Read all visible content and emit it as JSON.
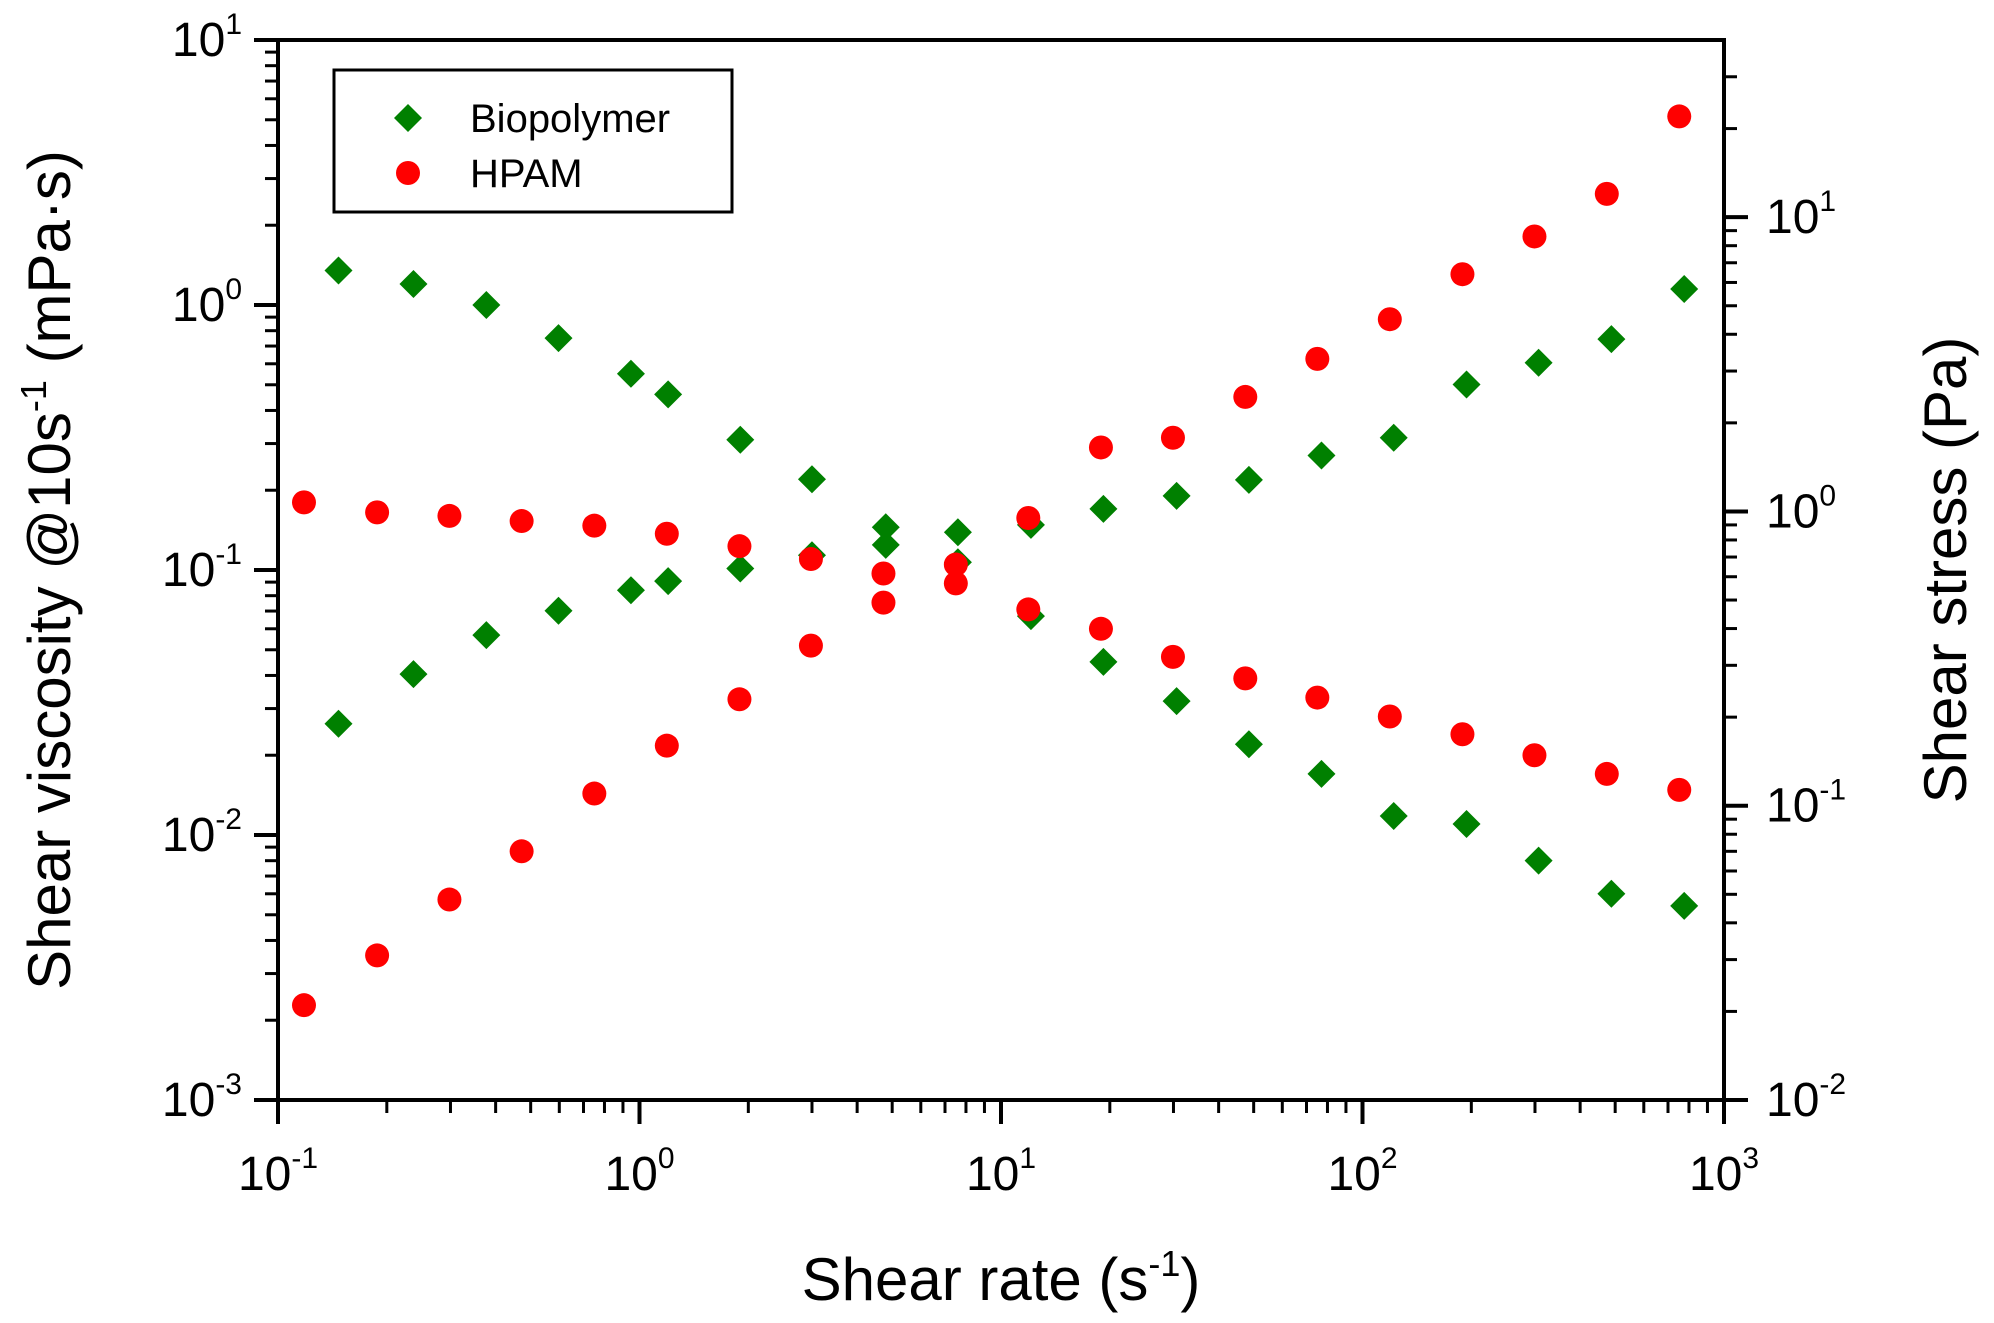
{
  "chart_data": {
    "type": "scatter",
    "x_axis": {
      "label_main": "Shear rate (s",
      "label_sup": "-1",
      "label_end": ")",
      "scale": "log",
      "range": [
        0.1,
        1000
      ],
      "ticks": [
        {
          "base": "10",
          "exp": "-1",
          "value": 0.1
        },
        {
          "base": "10",
          "exp": "0",
          "value": 1
        },
        {
          "base": "10",
          "exp": "1",
          "value": 10
        },
        {
          "base": "10",
          "exp": "2",
          "value": 100
        },
        {
          "base": "10",
          "exp": "3",
          "value": 1000
        }
      ]
    },
    "y_left_axis": {
      "label_main": "Shear viscosity @10s",
      "label_sup": "-1",
      "label_end": " (mPa·s)",
      "scale": "log",
      "range": [
        0.001,
        10
      ],
      "ticks": [
        {
          "base": "10",
          "exp": "-3",
          "value": 0.001
        },
        {
          "base": "10",
          "exp": "-2",
          "value": 0.01
        },
        {
          "base": "10",
          "exp": "-1",
          "value": 0.1
        },
        {
          "base": "10",
          "exp": "0",
          "value": 1
        },
        {
          "base": "10",
          "exp": "1",
          "value": 10
        }
      ]
    },
    "y_right_axis": {
      "label": "Shear stress (Pa)",
      "scale": "log",
      "range": [
        0.01,
        40
      ],
      "ticks": [
        {
          "base": "10",
          "exp": "-2",
          "value": 0.01
        },
        {
          "base": "10",
          "exp": "-1",
          "value": 0.1
        },
        {
          "base": "10",
          "exp": "0",
          "value": 1
        },
        {
          "base": "10",
          "exp": "1",
          "value": 10
        }
      ]
    },
    "legend": {
      "position": "top-left",
      "entries": [
        {
          "name": "Biopolymer",
          "marker": "diamond",
          "color": "#008000"
        },
        {
          "name": "HPAM",
          "marker": "circle",
          "color": "#ff0000"
        }
      ]
    },
    "grid": false,
    "series": [
      {
        "name": "Biopolymer",
        "quantity": "viscosity",
        "axis": "left",
        "marker": "diamond",
        "color": "#008000",
        "x": [
          0.147,
          0.237,
          0.377,
          0.597,
          0.947,
          1.2,
          1.9,
          3.0,
          4.8,
          7.6,
          12.1,
          19.2,
          30.6,
          48.5,
          77,
          122,
          194,
          307,
          488,
          776
        ],
        "y": [
          1.35,
          1.2,
          1.0,
          0.75,
          0.55,
          0.46,
          0.31,
          0.22,
          0.145,
          0.107,
          0.067,
          0.045,
          0.032,
          0.022,
          0.017,
          0.0118,
          0.011,
          0.008,
          0.006,
          0.0054
        ]
      },
      {
        "name": "Biopolymer",
        "quantity": "stress",
        "axis": "right",
        "marker": "diamond",
        "color": "#008000",
        "x": [
          0.147,
          0.237,
          0.377,
          0.597,
          0.947,
          1.2,
          1.9,
          3.0,
          4.8,
          7.6,
          12.1,
          19.2,
          30.6,
          48.5,
          77,
          122,
          194,
          307,
          488,
          776
        ],
        "y": [
          0.19,
          0.28,
          0.38,
          0.46,
          0.54,
          0.58,
          0.64,
          0.71,
          0.77,
          0.85,
          0.9,
          1.02,
          1.13,
          1.28,
          1.55,
          1.78,
          2.7,
          3.2,
          3.85,
          5.7
        ]
      },
      {
        "name": "HPAM",
        "quantity": "viscosity",
        "axis": "left",
        "marker": "circle",
        "color": "#ff0000",
        "x": [
          0.118,
          0.188,
          0.298,
          0.472,
          0.75,
          1.19,
          1.89,
          2.98,
          4.73,
          7.5,
          11.9,
          18.9,
          29.9,
          47.4,
          75,
          119,
          189,
          299,
          474,
          752
        ],
        "y": [
          0.18,
          0.165,
          0.16,
          0.153,
          0.147,
          0.137,
          0.123,
          0.11,
          0.097,
          0.089,
          0.071,
          0.06,
          0.047,
          0.039,
          0.033,
          0.028,
          0.024,
          0.02,
          0.017,
          0.0148
        ]
      },
      {
        "name": "HPAM",
        "quantity": "stress",
        "axis": "right",
        "marker": "circle",
        "color": "#ff0000",
        "x": [
          0.118,
          0.188,
          0.298,
          0.472,
          0.75,
          1.19,
          1.89,
          2.98,
          4.73,
          7.5,
          11.9,
          18.9,
          29.9,
          47.4,
          75,
          119,
          189,
          299,
          474,
          752
        ],
        "y": [
          0.021,
          0.031,
          0.048,
          0.07,
          0.11,
          0.16,
          0.23,
          0.35,
          0.49,
          0.66,
          0.95,
          1.65,
          1.78,
          2.45,
          3.3,
          4.5,
          6.4,
          8.6,
          12.0,
          22.0
        ]
      }
    ]
  }
}
